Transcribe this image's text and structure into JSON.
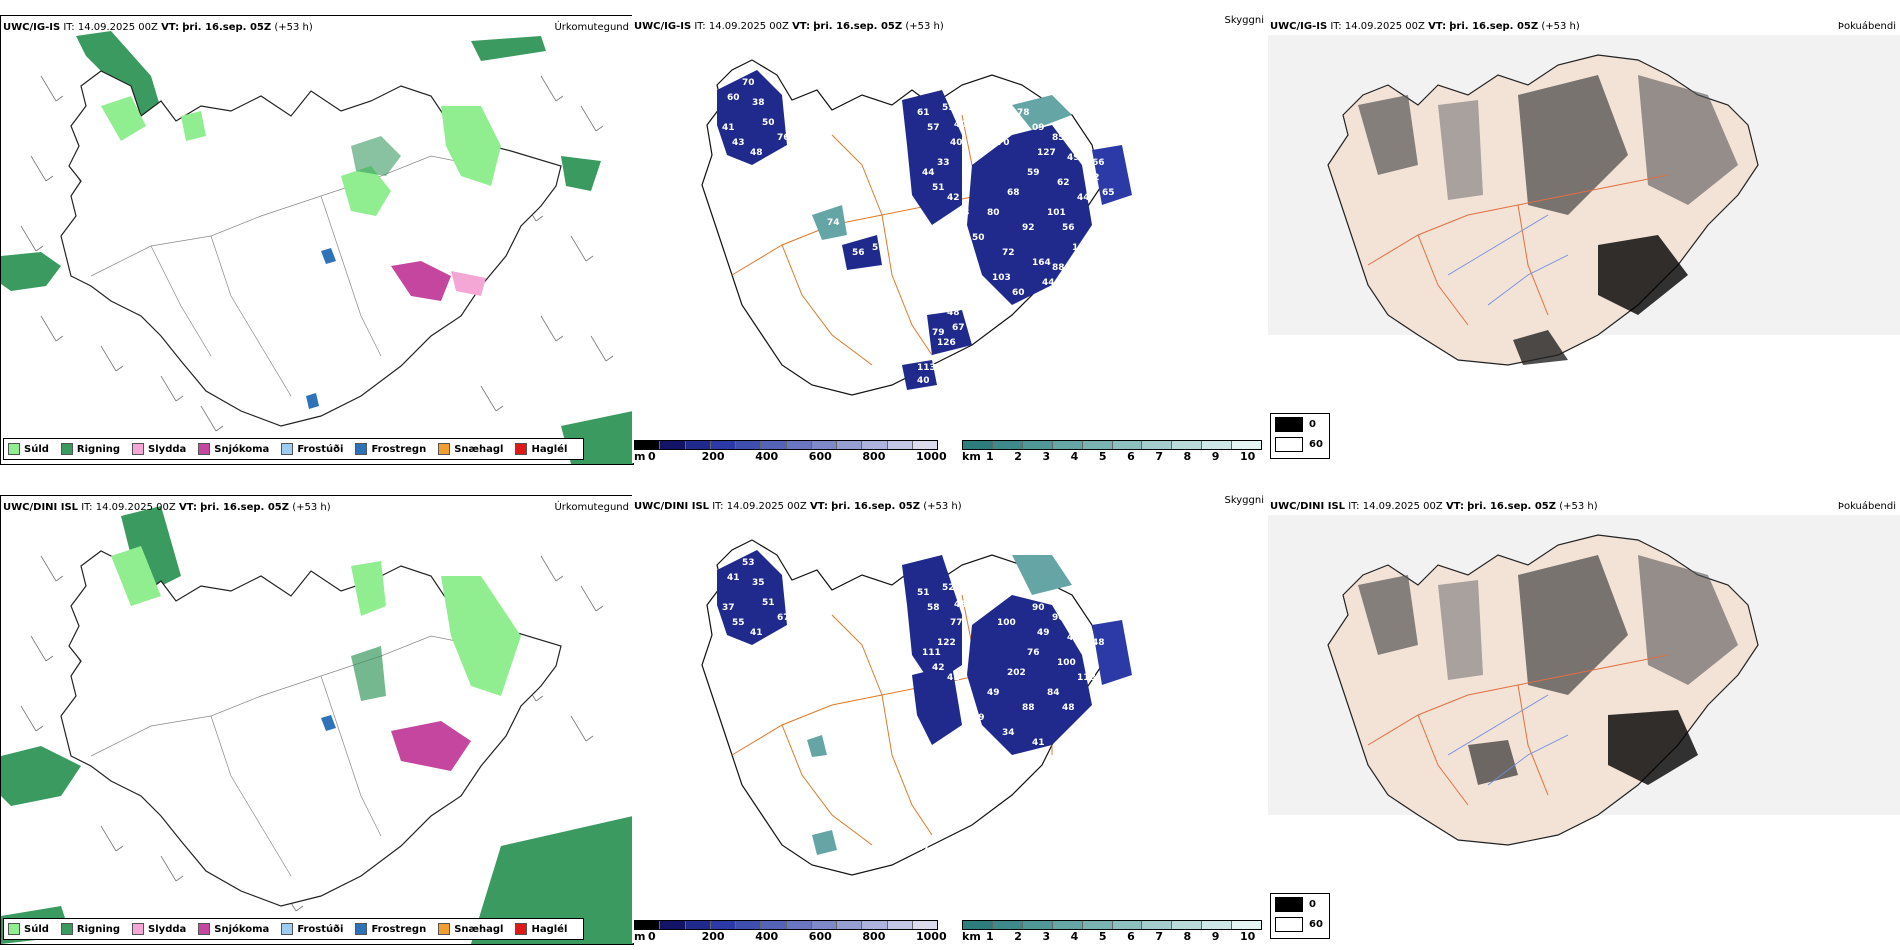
{
  "rows": [
    {
      "model": "UWC/IG-IS",
      "it_label": "IT:",
      "it_value": "14.09.2025 00Z",
      "vt_label": "VT:",
      "vt_value": "þri. 16.sep. 05Z",
      "lead": "(+53 h)",
      "precip_title": "Úrkomutegund",
      "cloud_title": "Skyggni",
      "fog_title": "Þokuábendi",
      "cloud_numbers": [
        "70",
        "60",
        "38",
        "41",
        "43",
        "50",
        "48",
        "50",
        "76",
        "10",
        "61",
        "57",
        "55",
        "40",
        "40",
        "33",
        "44",
        "51",
        "42",
        "43",
        "50",
        "78",
        "70",
        "09",
        "85",
        "49",
        "127",
        "59",
        "62",
        "44",
        "66",
        "68",
        "80",
        "101",
        "92",
        "56",
        "50",
        "72",
        "164",
        "103",
        "60",
        "48",
        "126",
        "113",
        "51",
        "56",
        "60",
        "74",
        "107",
        "44",
        "42",
        "65",
        "105",
        "88",
        "79",
        "67",
        "40"
      ]
    },
    {
      "model": "UWC/DINI ISL",
      "it_label": "IT:",
      "it_value": "14.09.2025 00Z",
      "vt_label": "VT:",
      "vt_value": "þri. 16.sep. 05Z",
      "lead": "(+53 h)",
      "precip_title": "Úrkomutegund",
      "cloud_title": "Skyggni",
      "fog_title": "Þokuábendi",
      "cloud_numbers": [
        "53",
        "41",
        "35",
        "37",
        "55",
        "51",
        "41",
        "68",
        "67",
        "49",
        "51",
        "58",
        "52",
        "45",
        "77",
        "122",
        "111",
        "42",
        "41",
        "44",
        "52",
        "59",
        "100",
        "90",
        "96",
        "45",
        "49",
        "76",
        "100",
        "118",
        "48",
        "202",
        "49",
        "84",
        "88",
        "48",
        "39",
        "34",
        "41",
        "132",
        "122",
        "197",
        "47",
        "47"
      ]
    }
  ],
  "precip_legend": [
    {
      "label": "Súld",
      "color": "#90ee90"
    },
    {
      "label": "Rigning",
      "color": "#3a9a60"
    },
    {
      "label": "Slydda",
      "color": "#f4a6d4"
    },
    {
      "label": "Snjókoma",
      "color": "#c4469e"
    },
    {
      "label": "Frostúði",
      "color": "#9ecbf0"
    },
    {
      "label": "Frostregn",
      "color": "#2e73b8"
    },
    {
      "label": "Snæhagl",
      "color": "#f0a030"
    },
    {
      "label": "Haglél",
      "color": "#e01818"
    }
  ],
  "cloud_base_bar": {
    "unit": "m",
    "ticks": [
      "0",
      "200",
      "400",
      "600",
      "800",
      "1000"
    ],
    "colors": [
      "#000000",
      "#141466",
      "#1f2a8c",
      "#2b3aa6",
      "#3f4fb0",
      "#5563b8",
      "#6a77c0",
      "#8089c8",
      "#979fd2",
      "#adb3dc",
      "#c4c8e6",
      "#dadcee"
    ]
  },
  "visibility_bar": {
    "unit": "km",
    "ticks": [
      "1",
      "2",
      "3",
      "4",
      "5",
      "6",
      "7",
      "8",
      "9",
      "10"
    ],
    "colors": [
      "#2e7d7d",
      "#3e8a8a",
      "#519797",
      "#66a5a5",
      "#7ab2b2",
      "#8fc0c0",
      "#a5cdcd",
      "#badada",
      "#d0e7e7",
      "#e6f3f3"
    ]
  },
  "fog_legend": [
    {
      "value": "0",
      "color": "#000000"
    },
    {
      "value": "60",
      "color": "#ffffff"
    }
  ]
}
